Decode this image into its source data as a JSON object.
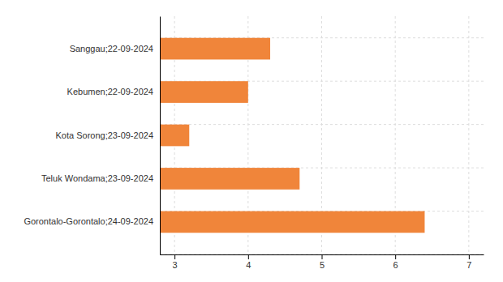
{
  "chart_data": {
    "type": "bar",
    "orientation": "horizontal",
    "categories": [
      "Gorontalo-Gorontalo;24-09-2024",
      "Teluk Wondama;23-09-2024",
      "Kota Sorong;23-09-2024",
      "Kebumen;22-09-2024",
      "Sanggau;22-09-2024"
    ],
    "values": [
      6.4,
      4.7,
      3.2,
      4.0,
      4.3
    ],
    "color": "#f0853a",
    "xlim": [
      2.8,
      7.2
    ],
    "xticks": [
      3,
      4,
      5,
      6,
      7
    ],
    "grid": true
  }
}
